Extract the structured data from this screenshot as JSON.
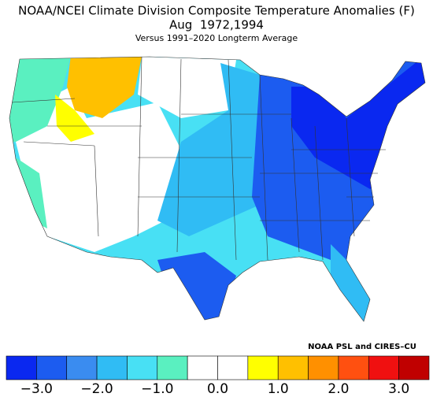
{
  "title": "NOAA/NCEI Climate Division Composite Temperature Anomalies (F)",
  "subtitle": "Aug  1972,1994",
  "note": "Versus 1991–2020 Longterm Average",
  "credit": "NOAA PSL and CIRES–CU",
  "colorbar": {
    "xlim": [
      -3.5,
      3.5
    ],
    "colors": [
      "#0a28f0",
      "#1c5cf0",
      "#3a8cf0",
      "#30bcf4",
      "#48e0f4",
      "#5af0c0",
      "#ffffff",
      "#ffffff",
      "#ffff00",
      "#ffc000",
      "#ff9000",
      "#ff5010",
      "#f01010",
      "#c00000"
    ],
    "xticks": [
      {
        "value": -3,
        "label": "−3.0"
      },
      {
        "value": -2,
        "label": "−2.0"
      },
      {
        "value": -1,
        "label": "−1.0"
      },
      {
        "value": 0,
        "label": "0.0"
      },
      {
        "value": 1,
        "label": "1.0"
      },
      {
        "value": 2,
        "label": "2.0"
      },
      {
        "value": 3,
        "label": "3.0"
      }
    ]
  }
}
